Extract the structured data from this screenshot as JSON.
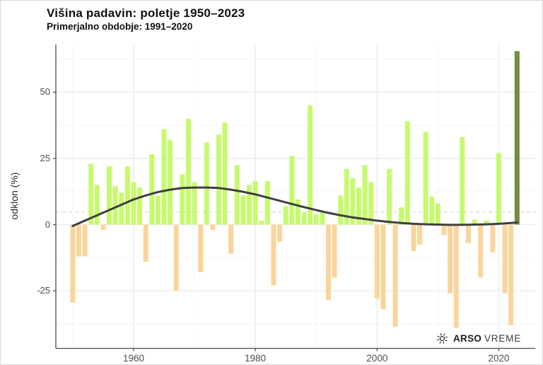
{
  "header": {
    "title": "Višina padavin: poletje 1950–2023",
    "subtitle": "Primerjalno obdobje: 1991–2020"
  },
  "axes": {
    "y_label": "odklon (%)",
    "y_major_ticks": [
      50,
      25,
      0,
      -25
    ],
    "y_minor_ticks": [
      62.5,
      37.5,
      12.5,
      -12.5,
      -37.5
    ],
    "x_major_ticks": [
      1960,
      1980,
      2000,
      2020
    ],
    "x_minor_ticks": [
      1950,
      1970,
      1990,
      2010
    ]
  },
  "footer": {
    "logo_bold": "ARSO",
    "logo_regular": "VREME",
    "logo_icon": "sun-icon"
  },
  "colors": {
    "positive_bar": "#c7f96f",
    "negative_bar": "#fbd49c",
    "highlight_bar": "#6b8f3e",
    "trend_line": "#3f3f3f",
    "reference_dashed": "#d8d8d8",
    "grid_major": "#ebebeb",
    "grid_minor": "#f5f5f5",
    "axis_line": "#4a4a4a",
    "tick_text": "#4d4d4d"
  },
  "chart_data": {
    "type": "bar",
    "title": "Višina padavin: poletje 1950–2023",
    "subtitle": "Primerjalno obdobje: 1991–2020",
    "xlabel": "",
    "ylabel": "odklon (%)",
    "x_range": [
      1950,
      2023
    ],
    "ylim": [
      -46,
      68
    ],
    "grid": true,
    "baseline_period": "1991–2020",
    "reference_line_dashed_y": 4.8,
    "highlight_year": 2023,
    "years": [
      1950,
      1951,
      1952,
      1953,
      1954,
      1955,
      1956,
      1957,
      1958,
      1959,
      1960,
      1961,
      1962,
      1963,
      1964,
      1965,
      1966,
      1967,
      1968,
      1969,
      1970,
      1971,
      1972,
      1973,
      1974,
      1975,
      1976,
      1977,
      1978,
      1979,
      1980,
      1981,
      1982,
      1983,
      1984,
      1985,
      1986,
      1987,
      1988,
      1989,
      1990,
      1991,
      1992,
      1993,
      1994,
      1995,
      1996,
      1997,
      1998,
      1999,
      2000,
      2001,
      2002,
      2003,
      2004,
      2005,
      2006,
      2007,
      2008,
      2009,
      2010,
      2011,
      2012,
      2013,
      2014,
      2015,
      2016,
      2017,
      2018,
      2019,
      2020,
      2021,
      2022,
      2023
    ],
    "values": [
      -29.5,
      -12,
      -12,
      23,
      15,
      -2,
      22,
      14.5,
      12,
      22,
      16,
      14,
      -14,
      26.5,
      11,
      36,
      32,
      -25,
      19,
      40,
      16,
      -18,
      31,
      -2,
      34,
      38.5,
      -11,
      22.5,
      11,
      15,
      16.5,
      1.5,
      16.5,
      -23,
      -6.5,
      7,
      26,
      9.5,
      4.5,
      45,
      4,
      5,
      -28.5,
      -20,
      11,
      21,
      17.5,
      14,
      22.5,
      16,
      -28,
      -32,
      21,
      -38.5,
      6.5,
      39,
      -10,
      -7.5,
      35,
      10.5,
      8,
      -4,
      -26,
      -39,
      33,
      -7,
      2,
      -20,
      1.5,
      -10.5,
      27,
      -26,
      -38,
      65.5
    ],
    "trend": {
      "years": [
        1950,
        1952,
        1954,
        1956,
        1958,
        1960,
        1962,
        1964,
        1966,
        1968,
        1970,
        1972,
        1974,
        1976,
        1978,
        1980,
        1982,
        1984,
        1986,
        1988,
        1990,
        1992,
        1994,
        1996,
        1998,
        2000,
        2002,
        2004,
        2006,
        2008,
        2010,
        2012,
        2014,
        2016,
        2018,
        2020,
        2022,
        2023
      ],
      "values": [
        -0.5,
        1.5,
        3.5,
        5.5,
        7.5,
        9.5,
        11,
        12.3,
        13.2,
        13.8,
        14,
        14,
        13.8,
        13.2,
        12.4,
        11.4,
        10.2,
        9,
        7.8,
        6.6,
        5.5,
        4.4,
        3.5,
        2.7,
        2.1,
        1.5,
        1,
        0.6,
        0.3,
        0.1,
        0,
        -0.1,
        -0.1,
        0,
        0.1,
        0.3,
        0.6,
        0.8
      ]
    }
  }
}
